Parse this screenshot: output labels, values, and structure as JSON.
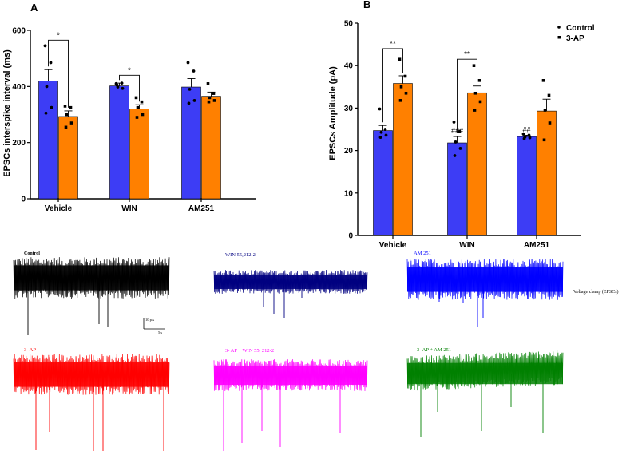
{
  "colors": {
    "control": "#3d3df5",
    "ap": "#ff8000",
    "axis": "#000000"
  },
  "chart_data": [
    {
      "type": "bar",
      "panel_label": "A",
      "title": "",
      "xlabel": "",
      "ylabel": "EPSCs interspike interval (ms)",
      "ylim": [
        0,
        600
      ],
      "yticks": [
        0,
        200,
        400,
        600
      ],
      "categories": [
        "Vehicle",
        "WIN",
        "AM251"
      ],
      "series": [
        {
          "name": "Control",
          "values": [
            420,
            402,
            398
          ],
          "sem": [
            40,
            10,
            30
          ],
          "points": [
            [
              545,
              485,
              400,
              325,
              305
            ],
            [
              410,
              412,
              398,
              393,
              405
            ],
            [
              485,
              455,
              390,
              350,
              340
            ]
          ]
        },
        {
          "name": "3-AP",
          "values": [
            293,
            320,
            365
          ],
          "sem": [
            20,
            15,
            15
          ],
          "points": [
            [
              330,
              325,
              300,
              270,
              255
            ],
            [
              360,
              345,
              325,
              300,
              290
            ],
            [
              410,
              375,
              360,
              350,
              345
            ]
          ]
        }
      ],
      "significance": [
        {
          "category": "Vehicle",
          "label": "*",
          "y": 565
        },
        {
          "category": "WIN",
          "label": "*",
          "y": 440
        }
      ]
    },
    {
      "type": "bar",
      "panel_label": "B",
      "title": "",
      "xlabel": "",
      "ylabel": "EPSCs Amplitude (pA)",
      "ylim": [
        0,
        50
      ],
      "yticks": [
        0,
        10,
        20,
        30,
        40,
        50
      ],
      "categories": [
        "Vehicle",
        "WIN",
        "AM251"
      ],
      "series": [
        {
          "name": "Control",
          "values": [
            24.7,
            21.8,
            23.3
          ],
          "sem": [
            1.2,
            1.5,
            0.3
          ],
          "points": [
            [
              29.8,
              25.0,
              24.3,
              23.6,
              23.1
            ],
            [
              26.7,
              24.5,
              22.0,
              20.5,
              18.8
            ],
            [
              23.9,
              23.6,
              23.2,
              23.0,
              22.8
            ]
          ],
          "annotations": [
            "",
            "###",
            "##"
          ]
        },
        {
          "name": "3-AP",
          "values": [
            35.8,
            33.6,
            29.3
          ],
          "sem": [
            1.8,
            1.6,
            2.8
          ],
          "points": [
            [
              41.5,
              37.5,
              35.0,
              33.5,
              31.8
            ],
            [
              40.0,
              36.5,
              33.5,
              31.5,
              29.5
            ],
            [
              36.5,
              33.0,
              29.5,
              26.5,
              22.5
            ]
          ]
        }
      ],
      "significance": [
        {
          "category": "Vehicle",
          "label": "**",
          "y": 44
        },
        {
          "category": "WIN",
          "label": "**",
          "y": 41.5
        }
      ],
      "legend": {
        "placement": "top-right",
        "items": [
          "Control",
          "3-AP"
        ]
      }
    }
  ],
  "traces": {
    "row1": [
      {
        "label": "Control",
        "color": "#000000"
      },
      {
        "label": "WIN 55,212-2",
        "color": "#000080"
      },
      {
        "label": "AM 251",
        "color": "#0000ff"
      }
    ],
    "row2": [
      {
        "label": "3- AP",
        "color": "#ff0000"
      },
      {
        "label": "3- AP + WIN 55, 212-2",
        "color": "#ff00ff"
      },
      {
        "label": "3- AP + AM 251",
        "color": "#008000"
      }
    ],
    "side_label": "Voltage clamp (EPSCs)",
    "scale_bar": {
      "y_label": "10 pA",
      "x_label": "5 s"
    }
  }
}
